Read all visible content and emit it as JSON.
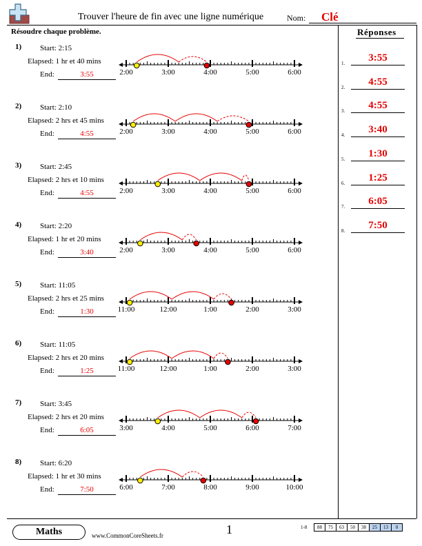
{
  "header": {
    "title": "Trouver l'heure de fin avec une ligne numérique",
    "name_label": "Nom:",
    "key_label": "Clé"
  },
  "instructions": "Résoudre chaque problème.",
  "answers_panel": {
    "title": "Réponses",
    "items": [
      {
        "num": "1.",
        "value": "3:55"
      },
      {
        "num": "2.",
        "value": "4:55"
      },
      {
        "num": "3.",
        "value": "4:55"
      },
      {
        "num": "4.",
        "value": "3:40"
      },
      {
        "num": "5.",
        "value": "1:30"
      },
      {
        "num": "6.",
        "value": "1:25"
      },
      {
        "num": "7.",
        "value": "6:05"
      },
      {
        "num": "8.",
        "value": "7:50"
      }
    ]
  },
  "problems": [
    {
      "num": "1)",
      "start": "Start: 2:15",
      "elapsed": "Elapsed: 1 hr et 40 mins",
      "end_label": "End:",
      "answer": "3:55",
      "hours": [
        "2:00",
        "3:00",
        "4:00",
        "5:00",
        "6:00"
      ],
      "start_min": 15,
      "end_min": 115
    },
    {
      "num": "2)",
      "start": "Start: 2:10",
      "elapsed": "Elapsed: 2 hrs et 45 mins",
      "end_label": "End:",
      "answer": "4:55",
      "hours": [
        "2:00",
        "3:00",
        "4:00",
        "5:00",
        "6:00"
      ],
      "start_min": 10,
      "end_min": 175
    },
    {
      "num": "3)",
      "start": "Start: 2:45",
      "elapsed": "Elapsed: 2 hrs et 10 mins",
      "end_label": "End:",
      "answer": "4:55",
      "hours": [
        "2:00",
        "3:00",
        "4:00",
        "5:00",
        "6:00"
      ],
      "start_min": 45,
      "end_min": 175
    },
    {
      "num": "4)",
      "start": "Start: 2:20",
      "elapsed": "Elapsed: 1 hr et 20 mins",
      "end_label": "End:",
      "answer": "3:40",
      "hours": [
        "2:00",
        "3:00",
        "4:00",
        "5:00",
        "6:00"
      ],
      "start_min": 20,
      "end_min": 100
    },
    {
      "num": "5)",
      "start": "Start: 11:05",
      "elapsed": "Elapsed: 2 hrs et 25 mins",
      "end_label": "End:",
      "answer": "1:30",
      "hours": [
        "11:00",
        "12:00",
        "1:00",
        "2:00",
        "3:00"
      ],
      "start_min": 5,
      "end_min": 150
    },
    {
      "num": "6)",
      "start": "Start: 11:05",
      "elapsed": "Elapsed: 2 hrs et 20 mins",
      "end_label": "End:",
      "answer": "1:25",
      "hours": [
        "11:00",
        "12:00",
        "1:00",
        "2:00",
        "3:00"
      ],
      "start_min": 5,
      "end_min": 145
    },
    {
      "num": "7)",
      "start": "Start: 3:45",
      "elapsed": "Elapsed: 2 hrs et 20 mins",
      "end_label": "End:",
      "answer": "6:05",
      "hours": [
        "3:00",
        "4:00",
        "5:00",
        "6:00",
        "7:00"
      ],
      "start_min": 45,
      "end_min": 185
    },
    {
      "num": "8)",
      "start": "Start: 6:20",
      "elapsed": "Elapsed: 1 hr et 30 mins",
      "end_label": "End:",
      "answer": "7:50",
      "hours": [
        "6:00",
        "7:00",
        "8:00",
        "9:00",
        "10:00"
      ],
      "start_min": 20,
      "end_min": 110
    }
  ],
  "colors": {
    "accent": "#e60000",
    "start_dot": "#ffee00",
    "end_dot": "#e60000",
    "score_highlight": "#bcd3ef"
  },
  "footer": {
    "brand": "Maths",
    "site": "www.CommonCoreSheets.fr",
    "page": "1",
    "range": "1-8",
    "scores": [
      "88",
      "75",
      "63",
      "50",
      "38",
      "25",
      "13",
      "0"
    ]
  }
}
